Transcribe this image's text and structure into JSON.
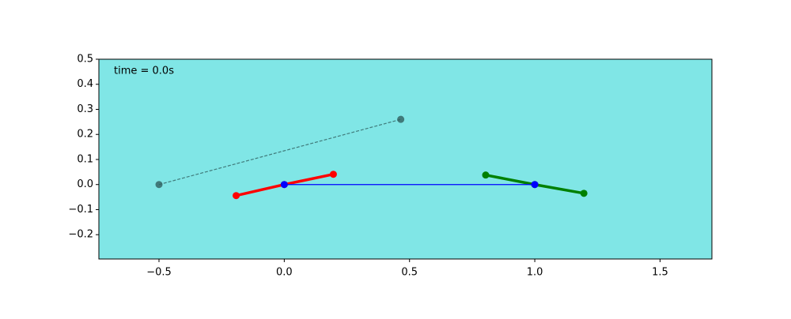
{
  "chart_data": {
    "type": "line",
    "annotation": "time = 0.0s",
    "background": "#80e6e6",
    "xlim": [
      -0.74,
      1.707
    ],
    "ylim": [
      -0.297,
      0.5
    ],
    "xticks": [
      {
        "value": -0.5,
        "label": "−0.5"
      },
      {
        "value": 0,
        "label": "0.0"
      },
      0.5,
      {
        "value": 1,
        "label": "1.0"
      },
      1.5
    ],
    "yticks": [
      {
        "value": -0.2,
        "label": "−0.2"
      },
      {
        "value": -0.1,
        "label": "−0.1"
      },
      {
        "value": 0,
        "label": "0.0"
      },
      0.1,
      0.2,
      0.3,
      0.4,
      0.5
    ],
    "series": [
      {
        "color": "#2f5f5f",
        "linestyle": "dashed",
        "x": [
          -0.5,
          0.465
        ],
        "values": [
          0,
          0.26
        ]
      },
      {
        "color": "#ff0000",
        "linestyle": "solid",
        "x": [
          -0.192,
          0,
          0.196
        ],
        "values": [
          -0.044,
          0,
          0.041
        ]
      },
      {
        "color": "#008000",
        "linestyle": "solid",
        "x": [
          0.804,
          1,
          1.196
        ],
        "values": [
          0.038,
          0,
          -0.035
        ]
      },
      {
        "color": "#0000ff",
        "linestyle": "solid",
        "x": [
          0,
          1
        ],
        "values": [
          0,
          0
        ]
      }
    ]
  }
}
